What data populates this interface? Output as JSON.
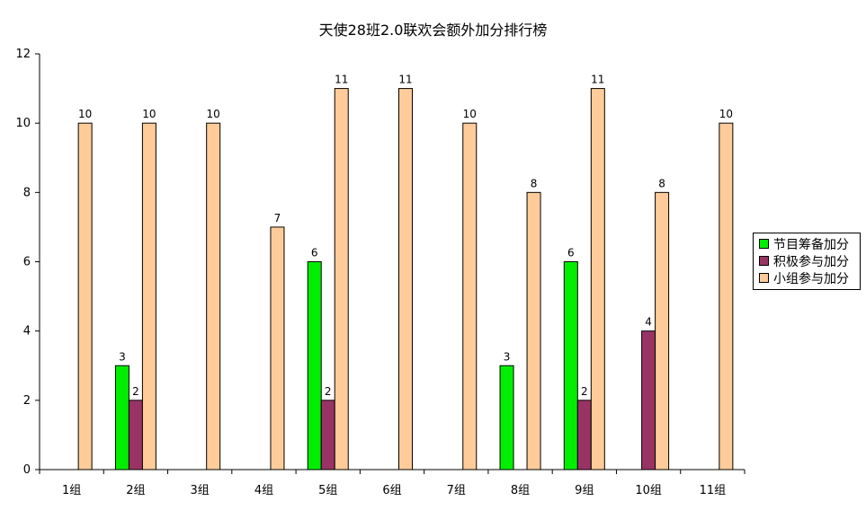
{
  "chart_data": {
    "type": "bar",
    "title": "天使28班2.0联欢会额外加分排行榜",
    "xlabel": "",
    "ylabel": "",
    "ylim": [
      0,
      12
    ],
    "yticks": [
      0,
      2,
      4,
      6,
      8,
      10,
      12
    ],
    "grid": false,
    "legend_position": "right",
    "categories": [
      "1组",
      "2组",
      "3组",
      "4组",
      "5组",
      "6组",
      "7组",
      "8组",
      "9组",
      "10组",
      "11组"
    ],
    "series": [
      {
        "name": "节目筹备加分",
        "color": "#00ee00",
        "values": [
          null,
          3,
          null,
          null,
          6,
          null,
          null,
          3,
          6,
          null,
          null
        ]
      },
      {
        "name": "积极参与加分",
        "color": "#993366",
        "values": [
          null,
          2,
          null,
          null,
          2,
          null,
          null,
          null,
          2,
          4,
          null
        ]
      },
      {
        "name": "小组参与加分",
        "color": "#ffcc99",
        "values": [
          10,
          10,
          10,
          7,
          11,
          11,
          10,
          8,
          11,
          8,
          10
        ]
      }
    ]
  }
}
